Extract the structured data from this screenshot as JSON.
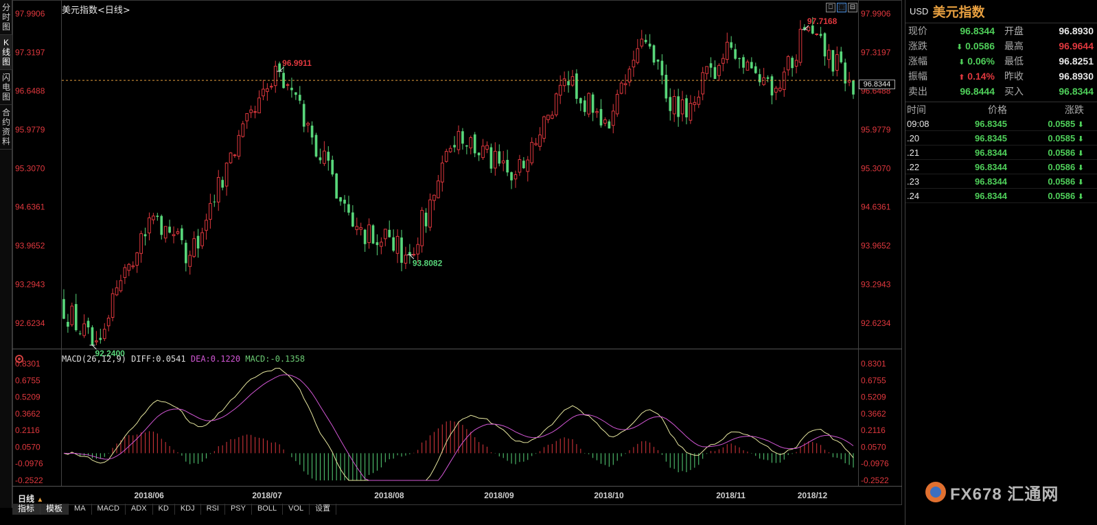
{
  "left_tabs": [
    "分时图",
    "K线图",
    "闪电图",
    "合约资料"
  ],
  "chart_title": "美元指数<日线>",
  "window_buttons": [
    "⎕",
    "⬚",
    "⊟"
  ],
  "price_axis": [
    "97.9906",
    "97.3197",
    "96.6488",
    "95.9779",
    "95.3070",
    "94.6361",
    "93.9652",
    "93.2943",
    "92.6234"
  ],
  "current_price_tag": "96.8344",
  "annotations": {
    "low1": "92.2400",
    "high1": "96.9911",
    "low2": "93.8082",
    "high2": "97.7168"
  },
  "macd": {
    "title_name": "MACD(26,12,9)",
    "diff": "DIFF:0.0541",
    "dea": "DEA:0.1220",
    "macd": "MACD:-0.1358",
    "axis": [
      "0.8301",
      "0.6755",
      "0.5209",
      "0.3662",
      "0.2116",
      "0.0570",
      "-0.0976",
      "-0.2522"
    ]
  },
  "months": [
    "2018/06",
    "2018/07",
    "2018/08",
    "2018/09",
    "2018/10",
    "2018/11",
    "2018/12"
  ],
  "bottom": {
    "period": "日线",
    "period_arrow": "▲",
    "tabs": [
      "指标",
      "模板",
      "MA",
      "MACD",
      "ADX",
      "KD",
      "KDJ",
      "RSI",
      "PSY",
      "BOLL",
      "VOL",
      "设置"
    ]
  },
  "quote": {
    "code": "USD",
    "name": "美元指数",
    "rows": [
      {
        "l1": "现价",
        "v1": "96.8344",
        "c1": "green",
        "a1": "",
        "l2": "开盘",
        "v2": "96.8930",
        "c2": "white"
      },
      {
        "l1": "涨跌",
        "v1": "0.0586",
        "c1": "green",
        "a1": "down",
        "l2": "最高",
        "v2": "96.9644",
        "c2": "red"
      },
      {
        "l1": "涨幅",
        "v1": "0.06%",
        "c1": "green",
        "a1": "down",
        "l2": "最低",
        "v2": "96.8251",
        "c2": "white"
      },
      {
        "l1": "振幅",
        "v1": "0.14%",
        "c1": "red",
        "a1": "up",
        "l2": "昨收",
        "v2": "96.8930",
        "c2": "white"
      },
      {
        "l1": "卖出",
        "v1": "96.8444",
        "c1": "green",
        "a1": "",
        "l2": "买入",
        "v2": "96.8344",
        "c2": "green"
      }
    ]
  },
  "ticks": {
    "header": [
      "时间",
      "价格",
      "涨跌"
    ],
    "rows": [
      {
        "time": "09:08",
        "price": "96.8345",
        "change": "0.0585"
      },
      {
        "time": ".20",
        "price": "96.8345",
        "change": "0.0585"
      },
      {
        "time": ".21",
        "price": "96.8344",
        "change": "0.0586"
      },
      {
        "time": ".22",
        "price": "96.8344",
        "change": "0.0586"
      },
      {
        "time": ".23",
        "price": "96.8344",
        "change": "0.0586"
      },
      {
        "time": ".24",
        "price": "96.8344",
        "change": "0.0586"
      }
    ]
  },
  "watermark": "FX678 汇通网",
  "chart_data": {
    "type": "candlestick",
    "price_range": [
      92.24,
      97.9906
    ],
    "reference_line": 96.8344,
    "anchors": [
      {
        "index": 7,
        "value": 92.24
      },
      {
        "index": 21,
        "value": 94.45
      },
      {
        "index": 31,
        "value": 93.8
      },
      {
        "index": 40,
        "value": 95.4
      },
      {
        "index": 53,
        "value": 96.9911
      },
      {
        "index": 72,
        "value": 94.3
      },
      {
        "index": 85,
        "value": 93.8082
      },
      {
        "index": 97,
        "value": 95.95
      },
      {
        "index": 110,
        "value": 95.1
      },
      {
        "index": 124,
        "value": 96.75
      },
      {
        "index": 134,
        "value": 96.0
      },
      {
        "index": 142,
        "value": 97.55
      },
      {
        "index": 151,
        "value": 96.2
      },
      {
        "index": 164,
        "value": 97.4
      },
      {
        "index": 175,
        "value": 96.7
      },
      {
        "index": 182,
        "value": 97.7168
      },
      {
        "index": 193,
        "value": 96.8344
      }
    ],
    "macd_range": [
      -0.2522,
      0.8301
    ]
  }
}
